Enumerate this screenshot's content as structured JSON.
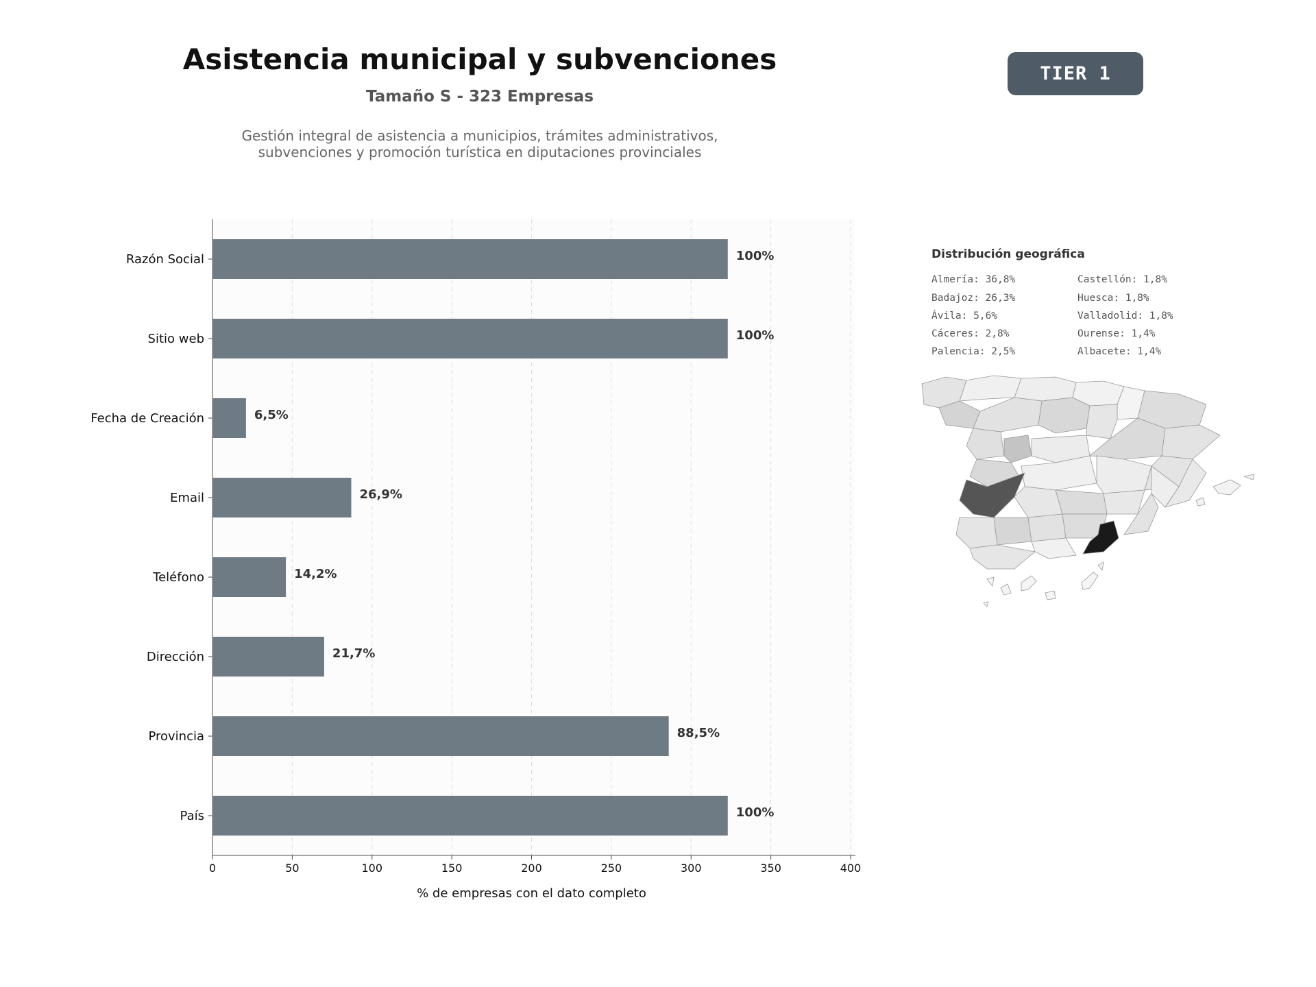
{
  "header": {
    "title": "Asistencia municipal y subvenciones",
    "subtitle": "Tamaño S - 323 Empresas",
    "description_line1": "Gestión integral de asistencia a municipios, trámites administrativos,",
    "description_line2": "subvenciones y promoción turística en diputaciones provinciales",
    "tier_label": "TIER 1"
  },
  "chart_data": {
    "type": "bar",
    "orientation": "horizontal",
    "categories": [
      "Razón Social",
      "Sitio web",
      "Fecha de Creación",
      "Email",
      "Teléfono",
      "Dirección",
      "Provincia",
      "País"
    ],
    "values": [
      323,
      323,
      21,
      87,
      46,
      70,
      286,
      323
    ],
    "data_labels": [
      "100%",
      "100%",
      "6,5%",
      "26,9%",
      "14,2%",
      "21,7%",
      "88,5%",
      "100%"
    ],
    "xlabel": "% de empresas con el dato completo",
    "ylabel": "",
    "xlim": [
      0,
      400
    ],
    "xticks": [
      0,
      50,
      100,
      150,
      200,
      250,
      300,
      350,
      400
    ],
    "grid": "vertical dashed",
    "bar_color": "#6e7a84"
  },
  "geo": {
    "title": "Distribución geográfica",
    "items": [
      "Almería: 36,8%",
      "Badajoz: 26,3%",
      "Ávila: 5,6%",
      "Cáceres: 2,8%",
      "Palencia: 2,5%",
      "Castellón: 1,8%",
      "Huesca: 1,8%",
      "Valladolid: 1,8%",
      "Ourense: 1,4%",
      "Albacete: 1,4%"
    ]
  }
}
